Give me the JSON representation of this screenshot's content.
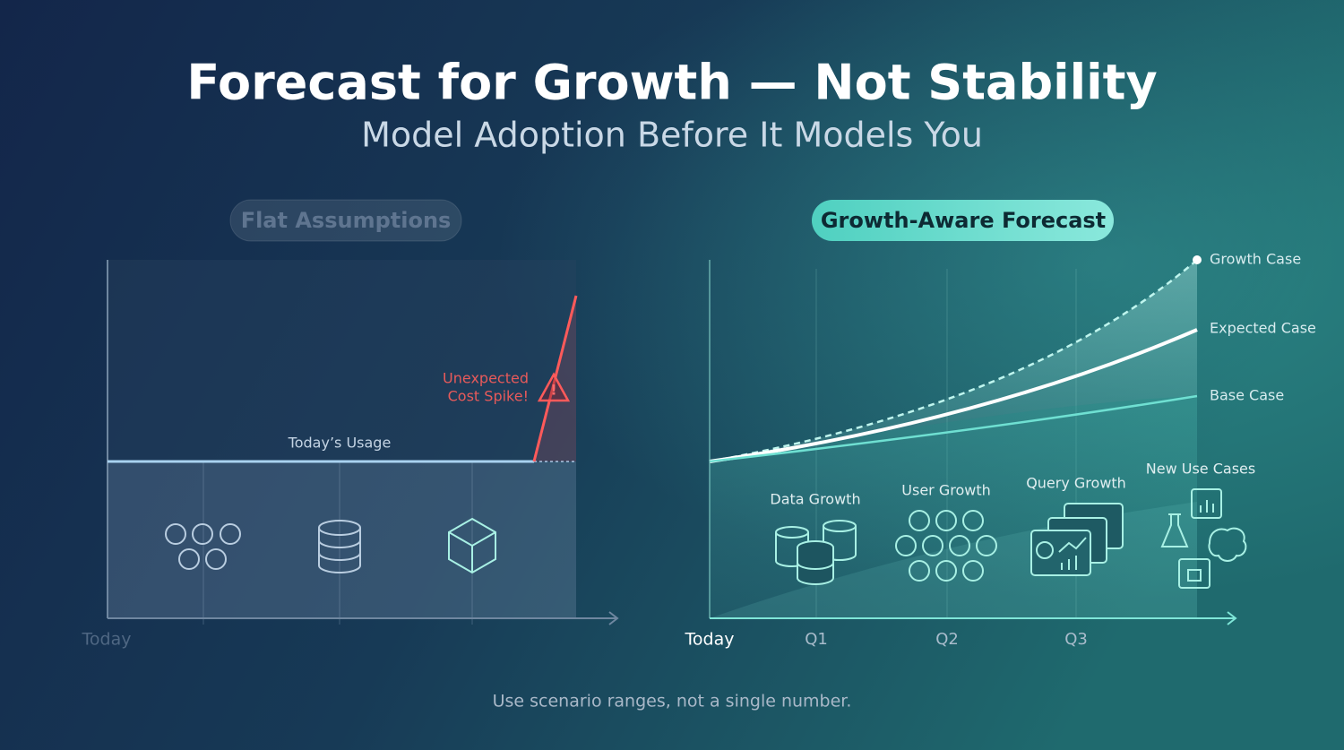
{
  "header": {
    "title": "Forecast for Growth — Not Stability",
    "subtitle": "Model Adoption Before It Models You"
  },
  "left_panel": {
    "label": "Flat Assumptions",
    "line_label": "Today’s Usage",
    "alert": [
      "Unexpected",
      "Cost Spike!"
    ],
    "x_label": "Today"
  },
  "right_panel": {
    "label": "Growth-Aware Forecast",
    "scenarios": [
      "Growth Case",
      "Expected Case",
      "Base Case"
    ],
    "drivers": [
      "Data Growth",
      "User Growth",
      "Query Growth",
      "New Use Cases"
    ],
    "x_labels": [
      "Today",
      "Q1",
      "Q2",
      "Q3"
    ]
  },
  "footer": "Use scenario ranges, not a single number."
}
